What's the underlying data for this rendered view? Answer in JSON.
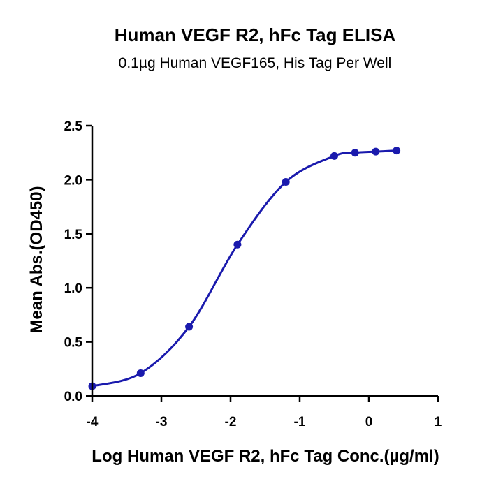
{
  "chart_data": {
    "type": "line",
    "title": "Human VEGF R2, hFc Tag ELISA",
    "subtitle": "0.1µg Human VEGF165, His Tag Per Well",
    "xlabel": "Log Human VEGF R2, hFc Tag Conc.(µg/ml)",
    "ylabel": "Mean Abs.(OD450)",
    "xlim": [
      -4,
      1
    ],
    "ylim": [
      0,
      2.5
    ],
    "xticks": [
      -4,
      -3,
      -2,
      -1,
      0,
      1
    ],
    "yticks": [
      0.0,
      0.5,
      1.0,
      1.5,
      2.0,
      2.5
    ],
    "xtick_labels": [
      "-4",
      "-3",
      "-2",
      "-1",
      "0",
      "1"
    ],
    "ytick_labels": [
      "0.0",
      "0.5",
      "1.0",
      "1.5",
      "2.0",
      "2.5"
    ],
    "grid": false,
    "series": [
      {
        "color": "#1a1aad",
        "x": [
          -4.0,
          -3.3,
          -2.6,
          -1.9,
          -1.2,
          -0.5,
          -0.2,
          0.1,
          0.4
        ],
        "y": [
          0.09,
          0.21,
          0.64,
          1.4,
          1.98,
          2.22,
          2.25,
          2.26,
          2.27
        ]
      }
    ]
  }
}
